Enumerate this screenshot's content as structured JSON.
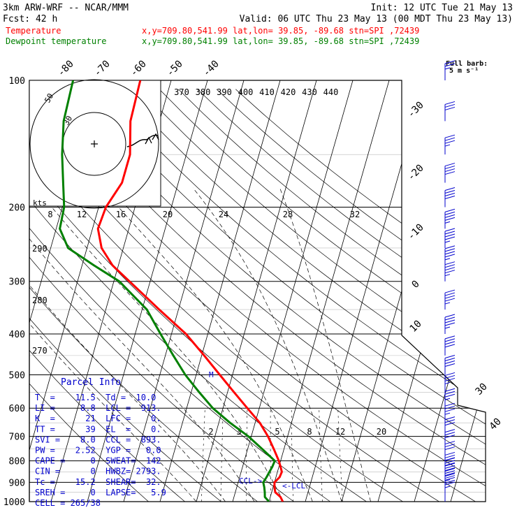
{
  "header": {
    "line1_left": "3km ARW-WRF -- NCAR/MMM",
    "line1_right": "Init: 12 UTC Tue 21 May 13",
    "line2_left": "Fcst:   42 h",
    "line2_right": "Valid: 06 UTC Thu 23 May 13 (00 MDT Thu 23 May 13)",
    "temp_label": "Temperature",
    "dew_label": "Dewpoint temperature",
    "point_info": "x,y=709.80,541.99   lat,lon= 39.85, -89.68   stn=SPI ,72439",
    "barb_title_1": "Full barb:",
    "barb_title_2": "5 m s⁻¹"
  },
  "colors": {
    "temperature": "#ff0000",
    "dewpoint": "#008000",
    "wind": "#0000cd",
    "grid": "#000000"
  },
  "parcel_info": {
    "title": "Parcel Info",
    "rows": [
      "T  =    11.5  Td =  10.0",
      "LI =     8.8  LCL =  913.",
      "K  =      21  LFC =    0.",
      "TT =      39  EL  =    0.",
      "SVI =    8.0  CCL =  893.",
      "PW =    2.52  YGP =   0.0",
      "CAPE =     0  SWEAT=  142",
      "CIN =      0  HWBZ= 2793.",
      "Tc =    15.2  SHEAR=  32.",
      "SREH =     0  LAPSE=   5.9",
      "CELL = 265/38"
    ]
  },
  "hodograph": {
    "ring_labels": [
      "50",
      "30"
    ],
    "speed_label": "kts"
  },
  "level_markers": {
    "ccl": "CCL",
    "lcl": "LCL",
    "m": "M"
  },
  "chart_data": {
    "type": "line",
    "title": "",
    "pressure_ticks": [
      100,
      200,
      300,
      400,
      500,
      600,
      700,
      800,
      900,
      1000
    ],
    "temperature_ticks": [
      -80,
      -70,
      -60,
      -50,
      -40,
      -30,
      -20,
      -10,
      0,
      10,
      20,
      30,
      40
    ],
    "theta_labels": [
      {
        "value": "370",
        "pos": 1
      },
      {
        "value": "380",
        "pos": 2
      },
      {
        "value": "390",
        "pos": 3
      },
      {
        "value": "400",
        "pos": 4
      },
      {
        "value": "410",
        "pos": 5
      },
      {
        "value": "420",
        "pos": 6
      },
      {
        "value": "430",
        "pos": 7
      },
      {
        "value": "440",
        "pos": 8
      }
    ],
    "dry_adiabat_side_labels": [
      "290",
      "280",
      "270"
    ],
    "mixing_ratio_top_labels": [
      "8",
      "12",
      "16",
      "20",
      "24",
      "28",
      "32"
    ],
    "mixing_ratio_low_labels": [
      "2",
      "3",
      "5",
      "8",
      "12",
      "20"
    ],
    "series": [
      {
        "name": "Temperature",
        "pressure": [
          1000,
          975,
          950,
          925,
          900,
          875,
          850,
          825,
          800,
          750,
          700,
          650,
          600,
          550,
          500,
          450,
          400,
          350,
          300,
          275,
          250,
          225,
          200,
          175,
          150,
          125,
          100
        ],
        "values": [
          13.8,
          12.8,
          11.0,
          10.4,
          10.0,
          11.0,
          11.2,
          10.4,
          9.5,
          7.2,
          4.6,
          1.3,
          -3.3,
          -8.2,
          -13.5,
          -19.3,
          -26.0,
          -35.3,
          -45.7,
          -51.6,
          -56.0,
          -58.5,
          -58.0,
          -55.5,
          -55.5,
          -58.0,
          -58.5
        ]
      },
      {
        "name": "Dewpoint temperature",
        "pressure": [
          1000,
          975,
          950,
          925,
          900,
          875,
          850,
          825,
          800,
          750,
          700,
          650,
          600,
          550,
          500,
          450,
          400,
          350,
          300,
          275,
          250,
          225,
          200,
          175,
          150,
          125,
          100
        ],
        "values": [
          10.0,
          8.5,
          8.1,
          7.6,
          6.9,
          7.4,
          7.8,
          8.2,
          8.4,
          4.0,
          -0.8,
          -6.9,
          -12.8,
          -17.8,
          -23.0,
          -27.8,
          -33.0,
          -38.7,
          -48.5,
          -56.7,
          -65.2,
          -69.0,
          -69.5,
          -71.7,
          -74.2,
          -76.4,
          -77.0
        ]
      }
    ],
    "wind_barbs": [
      {
        "pressure": 1000,
        "speed_kts": 15,
        "dir": 200
      },
      {
        "pressure": 975,
        "speed_kts": 20,
        "dir": 205
      },
      {
        "pressure": 950,
        "speed_kts": 25,
        "dir": 210
      },
      {
        "pressure": 925,
        "speed_kts": 30,
        "dir": 215
      },
      {
        "pressure": 900,
        "speed_kts": 30,
        "dir": 220
      },
      {
        "pressure": 875,
        "speed_kts": 30,
        "dir": 225
      },
      {
        "pressure": 850,
        "speed_kts": 30,
        "dir": 230
      },
      {
        "pressure": 800,
        "speed_kts": 30,
        "dir": 240
      },
      {
        "pressure": 750,
        "speed_kts": 30,
        "dir": 245
      },
      {
        "pressure": 700,
        "speed_kts": 30,
        "dir": 250
      },
      {
        "pressure": 650,
        "speed_kts": 35,
        "dir": 250
      },
      {
        "pressure": 600,
        "speed_kts": 35,
        "dir": 250
      },
      {
        "pressure": 550,
        "speed_kts": 35,
        "dir": 250
      },
      {
        "pressure": 500,
        "speed_kts": 40,
        "dir": 250
      },
      {
        "pressure": 450,
        "speed_kts": 40,
        "dir": 250
      },
      {
        "pressure": 400,
        "speed_kts": 45,
        "dir": 250
      },
      {
        "pressure": 350,
        "speed_kts": 45,
        "dir": 250
      },
      {
        "pressure": 300,
        "speed_kts": 45,
        "dir": 250
      },
      {
        "pressure": 275,
        "speed_kts": 45,
        "dir": 250
      },
      {
        "pressure": 250,
        "speed_kts": 45,
        "dir": 250
      },
      {
        "pressure": 225,
        "speed_kts": 45,
        "dir": 250
      },
      {
        "pressure": 200,
        "speed_kts": 40,
        "dir": 250
      },
      {
        "pressure": 175,
        "speed_kts": 40,
        "dir": 250
      },
      {
        "pressure": 150,
        "speed_kts": 35,
        "dir": 250
      },
      {
        "pressure": 125,
        "speed_kts": 30,
        "dir": 250
      },
      {
        "pressure": 100,
        "speed_kts": 25,
        "dir": 250
      }
    ],
    "grid": true
  }
}
